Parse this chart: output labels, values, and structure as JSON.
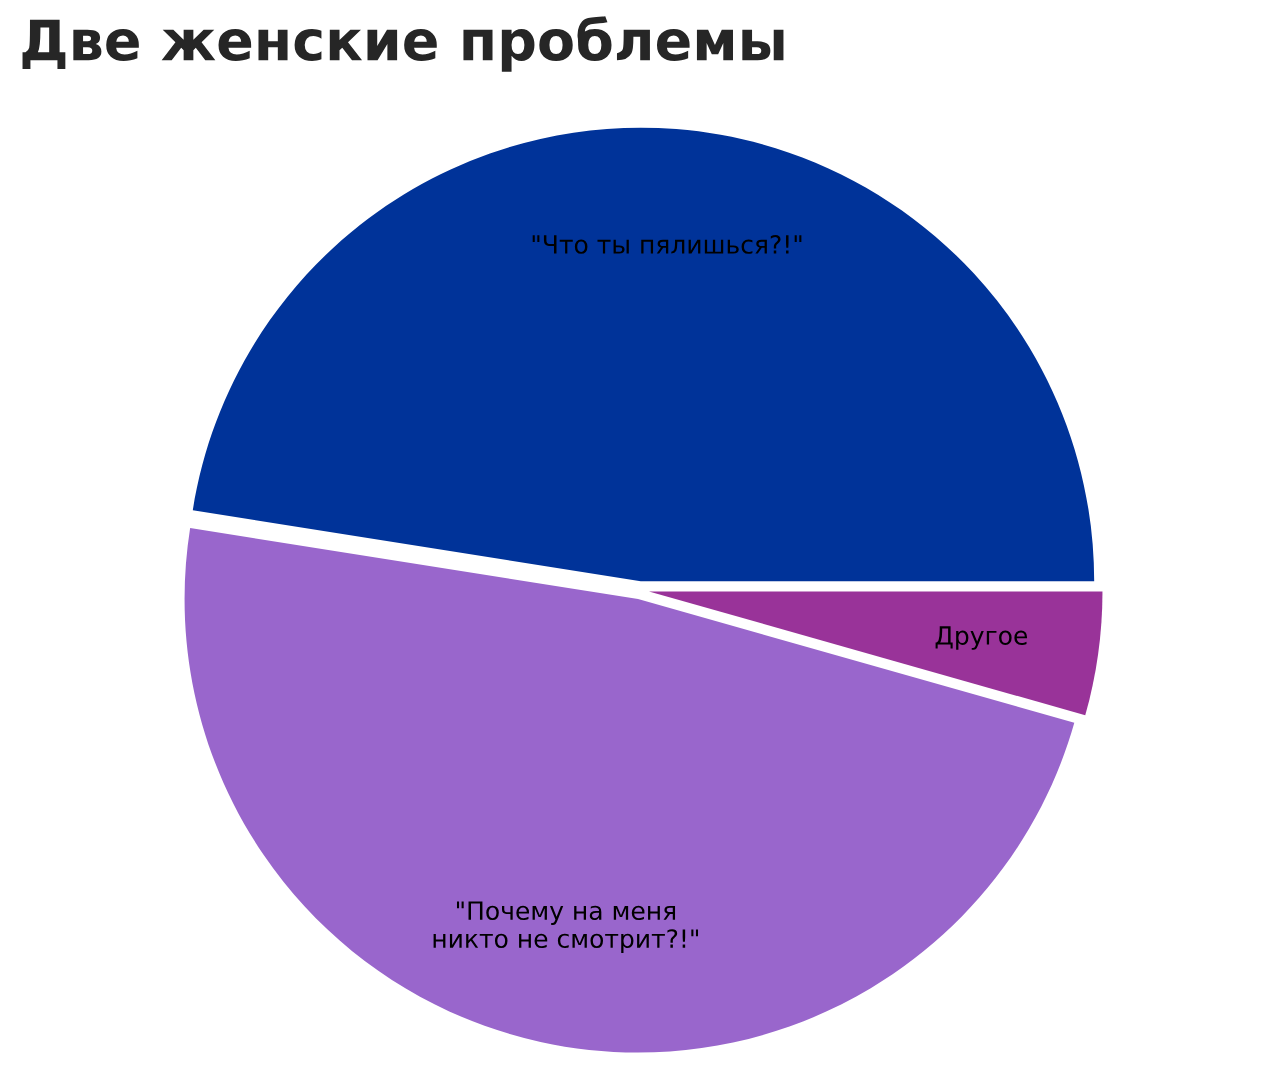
{
  "chart_data": {
    "type": "pie",
    "title": "Две женские проблемы",
    "categories": [
      "\"Что ты пялишься?!\"",
      "\"Почему на меня\nникто не смотрит?!\"",
      "Другое"
    ],
    "values": [
      47.5,
      48.1,
      4.4
    ],
    "colors": [
      "#003399",
      "#9966cc",
      "#993399"
    ]
  }
}
